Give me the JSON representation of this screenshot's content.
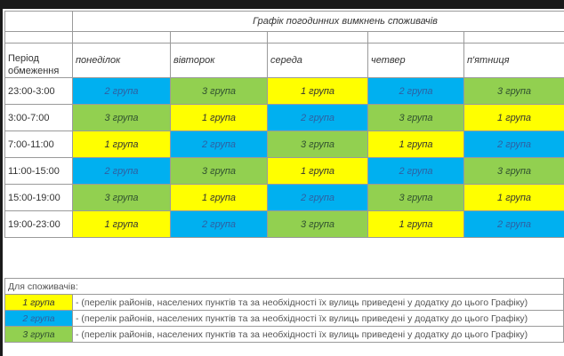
{
  "title": "Графік погодинних вимкнень споживачів",
  "period_label_line1": "Період",
  "period_label_line2": "обмеження",
  "days": [
    "понеділок",
    "вівторок",
    "середа",
    "четвер",
    "п'ятниця"
  ],
  "rows": [
    {
      "time": "23:00-3:00",
      "groups": [
        "2 група",
        "3 група",
        "1 група",
        "2 група",
        "3 група"
      ]
    },
    {
      "time": "3:00-7:00",
      "groups": [
        "3 група",
        "1 група",
        "2 група",
        "3 група",
        "1 група"
      ]
    },
    {
      "time": "7:00-11:00",
      "groups": [
        "1 група",
        "2 група",
        "3 група",
        "1 група",
        "2 група"
      ]
    },
    {
      "time": "11:00-15:00",
      "groups": [
        "2 група",
        "3 група",
        "1 група",
        "2 група",
        "3 група"
      ]
    },
    {
      "time": "15:00-19:00",
      "groups": [
        "3 група",
        "1 група",
        "2 група",
        "3 група",
        "1 група"
      ]
    },
    {
      "time": "19:00-23:00",
      "groups": [
        "1 група",
        "2 група",
        "3 група",
        "1 група",
        "2 група"
      ]
    }
  ],
  "group_colors": {
    "1 група": "#ffff00",
    "2 група": "#00b0f0",
    "3 група": "#92d050"
  },
  "legend": {
    "title": "Для споживачів:",
    "items": [
      {
        "label": "1 група",
        "text": "- (перелік районів, населених пунктів та за необхідності їх вулиць приведені у додатку до цього Графіку)"
      },
      {
        "label": "2 група",
        "text": "- (перелік районів, населених пунктів та за необхідності їх вулиць приведені у додатку до цього Графіку)"
      },
      {
        "label": "3 група",
        "text": "- (перелік районів, населених пунктів та за необхідності їх вулиць приведені у додатку до цього Графіку)"
      }
    ]
  }
}
